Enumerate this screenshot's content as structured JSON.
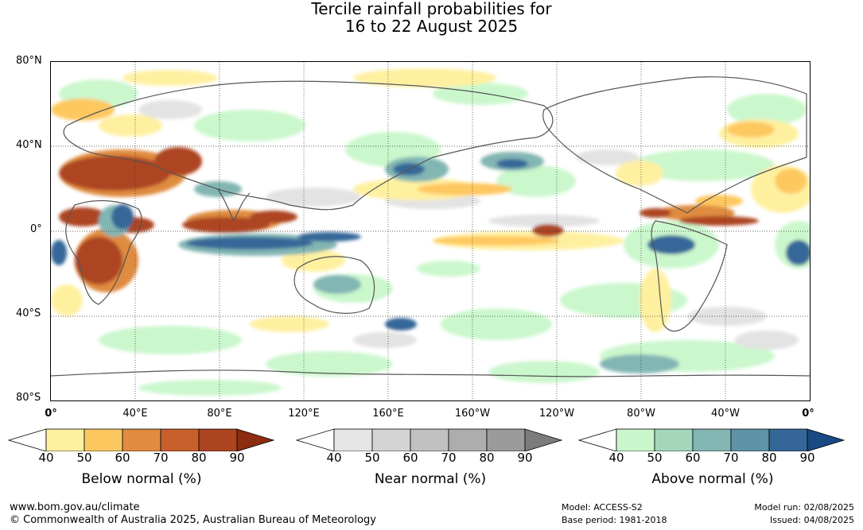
{
  "title": {
    "line1": "Tercile rainfall probabilities for",
    "line2": "16 to 22 August 2025"
  },
  "map": {
    "lat_labels": [
      "80°N",
      "40°N",
      "0°",
      "40°S",
      "80°S"
    ],
    "lon_labels": [
      "0°",
      "40°E",
      "80°E",
      "120°E",
      "160°E",
      "160°W",
      "120°W",
      "80°W",
      "40°W",
      "0°"
    ],
    "colors": {
      "coast": "#555555",
      "grid": "#333333"
    }
  },
  "legends": [
    {
      "name": "below",
      "title": "Below normal (%)",
      "ticks": [
        "40",
        "50",
        "60",
        "70",
        "80",
        "90"
      ],
      "colors": [
        "#ffffff",
        "#fff0a0",
        "#fec861",
        "#df8c40",
        "#c8602c",
        "#ad4421",
        "#8c2c10"
      ]
    },
    {
      "name": "near",
      "title": "Near normal (%)",
      "ticks": [
        "40",
        "50",
        "60",
        "70",
        "80",
        "90"
      ],
      "colors": [
        "#ffffff",
        "#e6e6e6",
        "#d4d4d4",
        "#c1c1c1",
        "#adadad",
        "#9b9b9b",
        "#7c7c7c"
      ]
    },
    {
      "name": "above",
      "title": "Above normal (%)",
      "ticks": [
        "40",
        "50",
        "60",
        "70",
        "80",
        "90"
      ],
      "colors": [
        "#ffffff",
        "#c9f7cb",
        "#a4d6bc",
        "#82b6b3",
        "#5f93a6",
        "#346798",
        "#184a84"
      ]
    }
  ],
  "footer": {
    "website": "www.bom.gov.au/climate",
    "copyright": "© Commonwealth of Australia 2025, Australian Bureau of Meteorology",
    "model": "Model: ACCESS-S2",
    "base_period": "Base period: 1981-2018",
    "model_run": "Model run: 02/08/2025",
    "issued": "Issued: 04/08/2025"
  }
}
